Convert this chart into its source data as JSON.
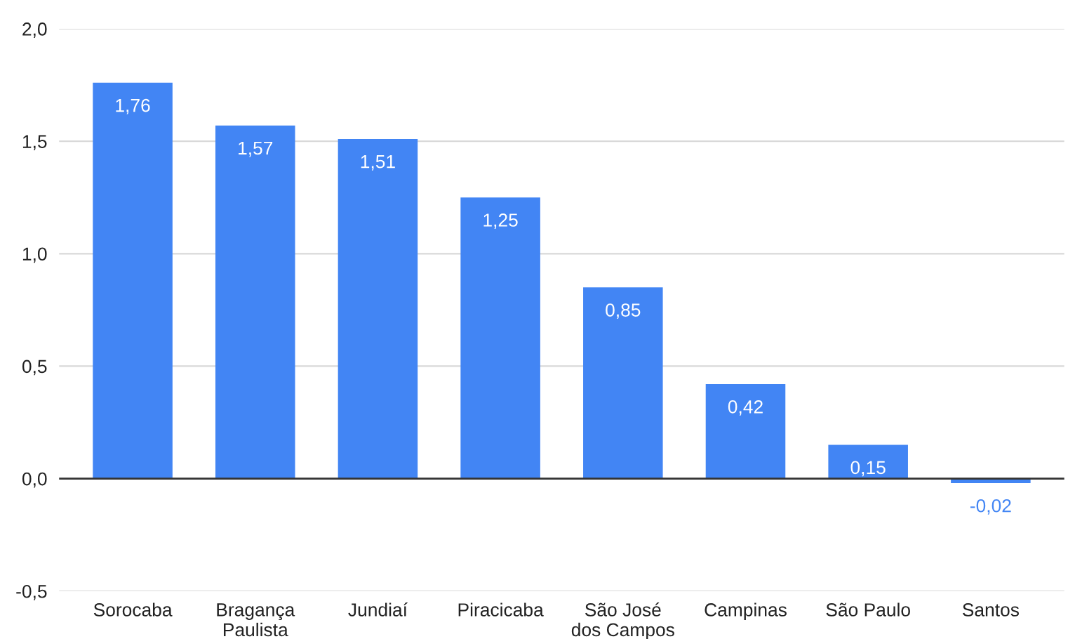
{
  "chart_data": {
    "type": "bar",
    "categories": [
      "Sorocaba",
      "Bragança\nPaulista",
      "Jundiaí",
      "Piracicaba",
      "São José\ndos Campos",
      "Campinas",
      "São Paulo",
      "Santos"
    ],
    "values": [
      1.76,
      1.57,
      1.51,
      1.25,
      0.85,
      0.42,
      0.15,
      -0.02
    ],
    "value_labels": [
      "1,76",
      "1,57",
      "1,51",
      "1,25",
      "0,85",
      "0,42",
      "0,15",
      "-0,02"
    ],
    "color": "#4285f4",
    "ylim": [
      -0.5,
      2.0
    ],
    "yticks": [
      {
        "value": -0.5,
        "label": "-0,5"
      },
      {
        "value": 0.0,
        "label": "0,0"
      },
      {
        "value": 0.5,
        "label": "0,5"
      },
      {
        "value": 1.0,
        "label": "1,0"
      },
      {
        "value": 1.5,
        "label": "1,5"
      },
      {
        "value": 2.0,
        "label": "2,0"
      }
    ],
    "grid": "y"
  }
}
